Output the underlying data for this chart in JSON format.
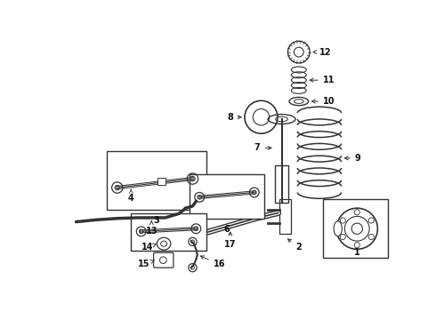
{
  "bg_color": "#ffffff",
  "line_color": "#333333",
  "label_color": "#111111",
  "figsize": [
    4.9,
    3.6
  ],
  "dpi": 100
}
